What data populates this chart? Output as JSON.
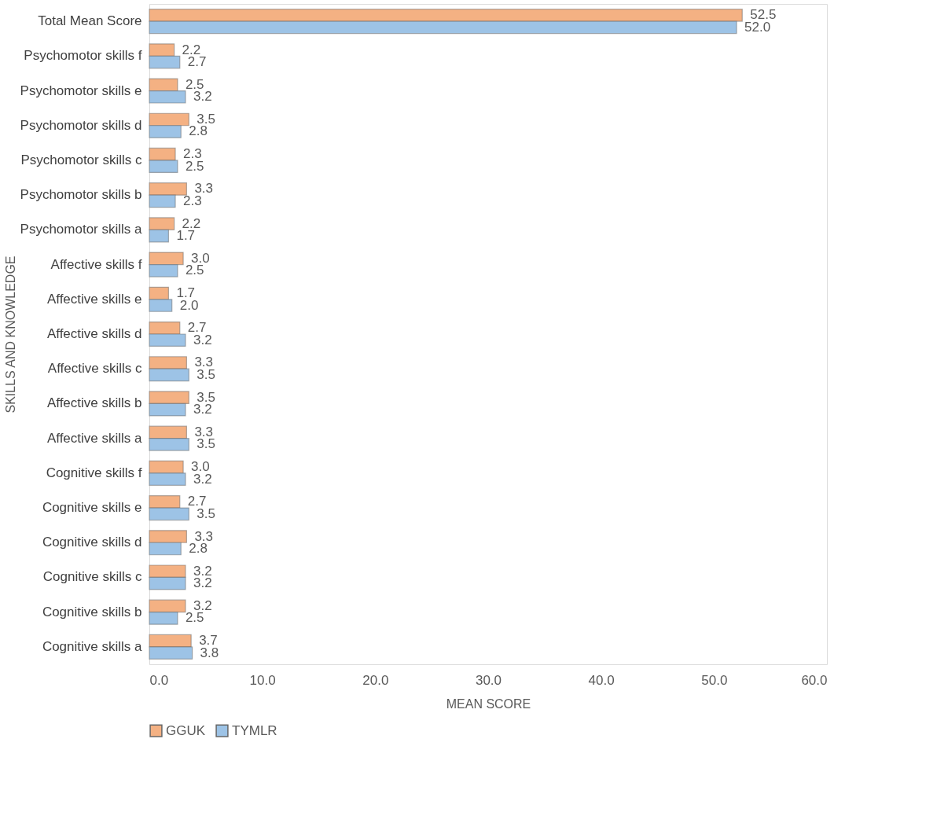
{
  "chart_data": {
    "type": "bar",
    "orientation": "horizontal",
    "xlabel": "MEAN SCORE",
    "ylabel": "SKILLS AND KNOWLEDGE",
    "categories": [
      "Total Mean Score",
      "Psychomotor skills f",
      "Psychomotor skills e",
      "Psychomotor skills d",
      "Psychomotor skills c",
      "Psychomotor skills b",
      "Psychomotor skills a",
      "Affective skills f",
      "Affective skills e",
      "Affective skills d",
      "Affective skills c",
      "Affective skills b",
      "Affective skills a",
      "Cognitive skills f",
      "Cognitive skills e",
      "Cognitive skills d",
      "Cognitive skills c",
      "Cognitive skills b",
      "Cognitive skills a"
    ],
    "series": [
      {
        "name": "GGUK",
        "color": "#f4b183",
        "values": [
          52.5,
          2.2,
          2.5,
          3.5,
          2.3,
          3.3,
          2.2,
          3.0,
          1.7,
          2.7,
          3.3,
          3.5,
          3.3,
          3.0,
          2.7,
          3.3,
          3.2,
          3.2,
          3.7
        ],
        "value_labels": [
          "52.5",
          "2.2",
          "2.5",
          "3.5",
          "2.3",
          "3.3",
          "2.2",
          "3.0",
          "1.7",
          "2.7",
          "3.3",
          "3.5",
          "3.3",
          "3.0",
          "2.7",
          "3.3",
          "3.2",
          "3.2",
          "3.7"
        ]
      },
      {
        "name": "TYMLR",
        "color": "#9dc3e6",
        "values": [
          52.0,
          2.7,
          3.2,
          2.8,
          2.5,
          2.3,
          1.7,
          2.5,
          2.0,
          3.2,
          3.5,
          3.2,
          3.5,
          3.2,
          3.5,
          2.8,
          3.2,
          2.5,
          3.8
        ],
        "value_labels": [
          "52.0",
          "2.7",
          "3.2",
          "2.8",
          "2.5",
          "2.3",
          "1.7",
          "2.5",
          "2.0",
          "3.2",
          "3.5",
          "3.2",
          "3.5",
          "3.2",
          "3.5",
          "2.8",
          "3.2",
          "2.5",
          "3.8"
        ]
      }
    ],
    "xlim": [
      0,
      60
    ],
    "xticks": [
      {
        "value": 0,
        "label": "0.0"
      },
      {
        "value": 10,
        "label": "10.0"
      },
      {
        "value": 20,
        "label": "20.0"
      },
      {
        "value": 30,
        "label": "30.0"
      },
      {
        "value": 40,
        "label": "40.0"
      },
      {
        "value": 50,
        "label": "50.0"
      },
      {
        "value": 60,
        "label": "60.0"
      }
    ],
    "legend": "bottom",
    "grid": false
  }
}
